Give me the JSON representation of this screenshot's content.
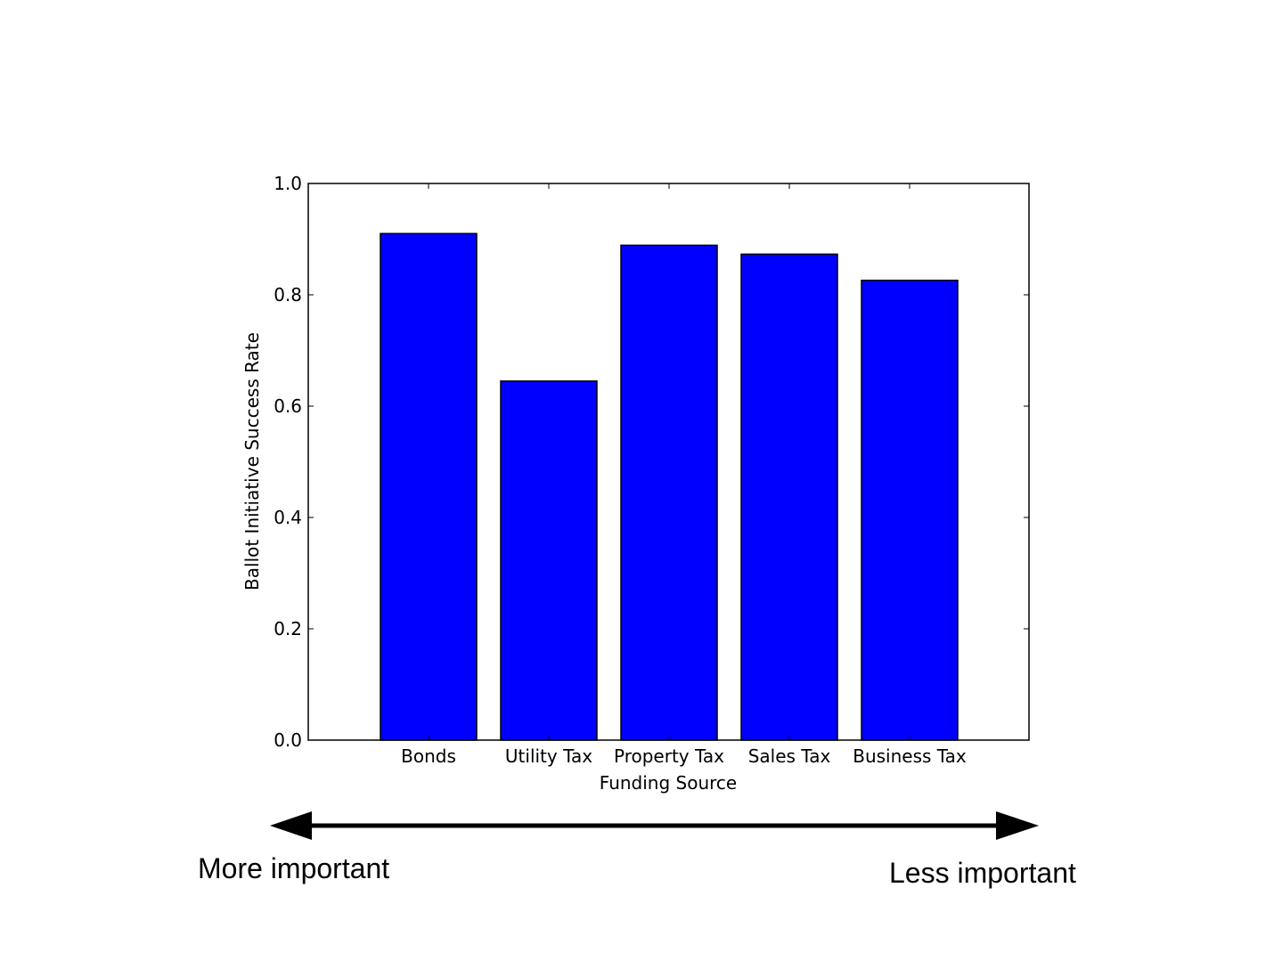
{
  "chart_data": {
    "type": "bar",
    "categories": [
      "Bonds",
      "Utility Tax",
      "Property Tax",
      "Sales Tax",
      "Business Tax"
    ],
    "values": [
      0.91,
      0.645,
      0.889,
      0.873,
      0.826
    ],
    "xlabel": "Funding Source",
    "ylabel": "Ballot Initiative Success Rate",
    "ylim": [
      0,
      1.0
    ],
    "yticks": [
      "0.0",
      "0.2",
      "0.4",
      "0.6",
      "0.8",
      "1.0"
    ],
    "grid": false,
    "bar_color": "#0000ff",
    "edge_color": "#000000"
  },
  "annotations": {
    "arrow": "double-headed",
    "left_label": "More important",
    "right_label": "Less important"
  }
}
